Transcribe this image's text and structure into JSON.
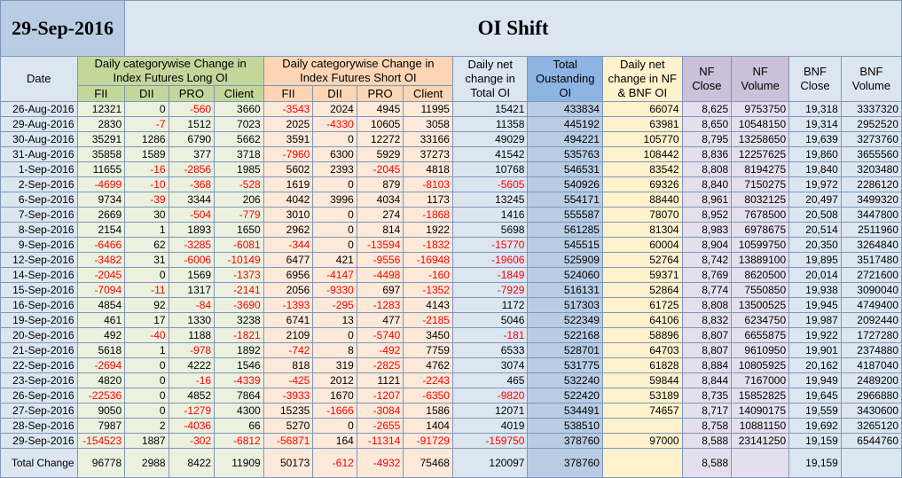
{
  "title_date": "29-Sep-2016",
  "title": "OI Shift",
  "headers": {
    "date": "Date",
    "long_group": "Daily categorywise Change in Index Futures Long OI",
    "short_group": "Daily categorywise Change in Index Futures Short OI",
    "net": "Daily net change in Total OI",
    "total_oi": "Total Oustanding OI",
    "nf_bnf": "Daily net change in NF & BNF OI",
    "nf_close": "NF Close",
    "nf_volume": "NF Volume",
    "bnf_close": "BNF Close",
    "bnf_volume": "BNF Volume",
    "fii": "FII",
    "dii": "DII",
    "pro": "PRO",
    "client": "Client"
  },
  "rows": [
    [
      "26-Aug-2016",
      "12321",
      "0",
      "-560",
      "3660",
      "-3543",
      "2024",
      "4945",
      "11995",
      "15421",
      "433834",
      "66074",
      "8,625",
      "9753750",
      "19,318",
      "3337320"
    ],
    [
      "29-Aug-2016",
      "2830",
      "-7",
      "1512",
      "7023",
      "2025",
      "-4330",
      "10605",
      "3058",
      "11358",
      "445192",
      "63981",
      "8,650",
      "10548150",
      "19,314",
      "2952520"
    ],
    [
      "30-Aug-2016",
      "35291",
      "1286",
      "6790",
      "5662",
      "3591",
      "0",
      "12272",
      "33166",
      "49029",
      "494221",
      "105770",
      "8,795",
      "13258650",
      "19,639",
      "3273760"
    ],
    [
      "31-Aug-2016",
      "35858",
      "1589",
      "377",
      "3718",
      "-7960",
      "6300",
      "5929",
      "37273",
      "41542",
      "535763",
      "108442",
      "8,836",
      "12257625",
      "19,860",
      "3655560"
    ],
    [
      "1-Sep-2016",
      "11655",
      "-16",
      "-2856",
      "1985",
      "5602",
      "2393",
      "-2045",
      "4818",
      "10768",
      "546531",
      "83542",
      "8,808",
      "8194275",
      "19,840",
      "3203480"
    ],
    [
      "2-Sep-2016",
      "-4699",
      "-10",
      "-368",
      "-528",
      "1619",
      "0",
      "879",
      "-8103",
      "-5605",
      "540926",
      "69326",
      "8,840",
      "7150275",
      "19,972",
      "2286120"
    ],
    [
      "6-Sep-2016",
      "9734",
      "-39",
      "3344",
      "206",
      "4042",
      "3996",
      "4034",
      "1173",
      "13245",
      "554171",
      "88440",
      "8,961",
      "8032125",
      "20,497",
      "3499320"
    ],
    [
      "7-Sep-2016",
      "2669",
      "30",
      "-504",
      "-779",
      "3010",
      "0",
      "274",
      "-1868",
      "1416",
      "555587",
      "78070",
      "8,952",
      "7678500",
      "20,508",
      "3447800"
    ],
    [
      "8-Sep-2016",
      "2154",
      "1",
      "1893",
      "1650",
      "2962",
      "0",
      "814",
      "1922",
      "5698",
      "561285",
      "81304",
      "8,983",
      "6978675",
      "20,514",
      "2511960"
    ],
    [
      "9-Sep-2016",
      "-6466",
      "62",
      "-3285",
      "-6081",
      "-344",
      "0",
      "-13594",
      "-1832",
      "-15770",
      "545515",
      "60004",
      "8,904",
      "10599750",
      "20,350",
      "3264840"
    ],
    [
      "12-Sep-2016",
      "-3482",
      "31",
      "-6006",
      "-10149",
      "6477",
      "421",
      "-9556",
      "-16948",
      "-19606",
      "525909",
      "52764",
      "8,742",
      "13889100",
      "19,895",
      "3517480"
    ],
    [
      "14-Sep-2016",
      "-2045",
      "0",
      "1569",
      "-1373",
      "6956",
      "-4147",
      "-4498",
      "-160",
      "-1849",
      "524060",
      "59371",
      "8,769",
      "8620500",
      "20,014",
      "2721600"
    ],
    [
      "15-Sep-2016",
      "-7094",
      "-11",
      "1317",
      "-2141",
      "2056",
      "-9330",
      "697",
      "-1352",
      "-7929",
      "516131",
      "52864",
      "8,774",
      "7550850",
      "19,938",
      "3090040"
    ],
    [
      "16-Sep-2016",
      "4854",
      "92",
      "-84",
      "-3690",
      "-1393",
      "-295",
      "-1283",
      "4143",
      "1172",
      "517303",
      "61725",
      "8,808",
      "13500525",
      "19,945",
      "4749400"
    ],
    [
      "19-Sep-2016",
      "461",
      "17",
      "1330",
      "3238",
      "6741",
      "13",
      "477",
      "-2185",
      "5046",
      "522349",
      "64106",
      "8,832",
      "6234750",
      "19,987",
      "2092440"
    ],
    [
      "20-Sep-2016",
      "492",
      "-40",
      "1188",
      "-1821",
      "2109",
      "0",
      "-5740",
      "3450",
      "-181",
      "522168",
      "58896",
      "8,807",
      "6655875",
      "19,922",
      "1727280"
    ],
    [
      "21-Sep-2016",
      "5618",
      "1",
      "-978",
      "1892",
      "-742",
      "8",
      "-492",
      "7759",
      "6533",
      "528701",
      "64703",
      "8,807",
      "9610950",
      "19,901",
      "2374880"
    ],
    [
      "22-Sep-2016",
      "-2694",
      "0",
      "4222",
      "1546",
      "818",
      "319",
      "-2825",
      "4762",
      "3074",
      "531775",
      "61828",
      "8,884",
      "10805925",
      "20,162",
      "4187040"
    ],
    [
      "23-Sep-2016",
      "4820",
      "0",
      "-16",
      "-4339",
      "-425",
      "2012",
      "1121",
      "-2243",
      "465",
      "532240",
      "59844",
      "8,844",
      "7167000",
      "19,949",
      "2489200"
    ],
    [
      "26-Sep-2016",
      "-22536",
      "0",
      "4852",
      "7864",
      "-3933",
      "1670",
      "-1207",
      "-6350",
      "-9820",
      "522420",
      "53189",
      "8,735",
      "15852825",
      "19,645",
      "2966880"
    ],
    [
      "27-Sep-2016",
      "9050",
      "0",
      "-1279",
      "4300",
      "15235",
      "-1666",
      "-3084",
      "1586",
      "12071",
      "534491",
      "74657",
      "8,717",
      "14090175",
      "19,559",
      "3430600"
    ],
    [
      "28-Sep-2016",
      "7987",
      "2",
      "-4036",
      "66",
      "5270",
      "0",
      "-2655",
      "1404",
      "4019",
      "538510",
      "",
      "8,758",
      "10881150",
      "19,692",
      "3265120"
    ],
    [
      "29-Sep-2016",
      "-154523",
      "1887",
      "-302",
      "-6812",
      "-56871",
      "164",
      "-11314",
      "-91729",
      "-159750",
      "378760",
      "97000",
      "8,588",
      "23141250",
      "19,159",
      "6544760"
    ]
  ],
  "total_row": [
    "Total Change",
    "96778",
    "2988",
    "8422",
    "11909",
    "50173",
    "-612",
    "-4932",
    "75468",
    "120097",
    "378760",
    "",
    "8,588",
    "",
    "19,159",
    ""
  ]
}
